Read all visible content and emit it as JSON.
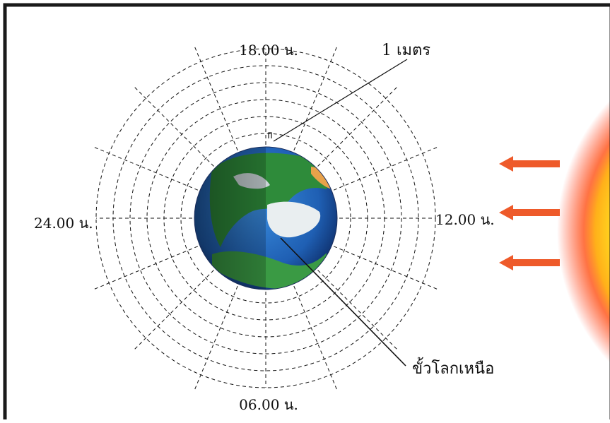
{
  "labels": {
    "top": "18.00 น.",
    "bottom": "06.00 น.",
    "left": "24.00 น.",
    "right": "12.00 น.",
    "meter": "1 เมตร",
    "north_pole": "ขั้วโลกเหนือ"
  },
  "colors": {
    "frame": "#1a1a1a",
    "arrow": "#ee5a2a",
    "sun_core": "#ffd21e",
    "sun_glow": "#ff3a1a",
    "ocean": "#1f63b8",
    "land": "#2e8b3a"
  },
  "diagram": {
    "ring_count": 6,
    "spoke_count": 16,
    "sun_ray_arrows": 3
  }
}
